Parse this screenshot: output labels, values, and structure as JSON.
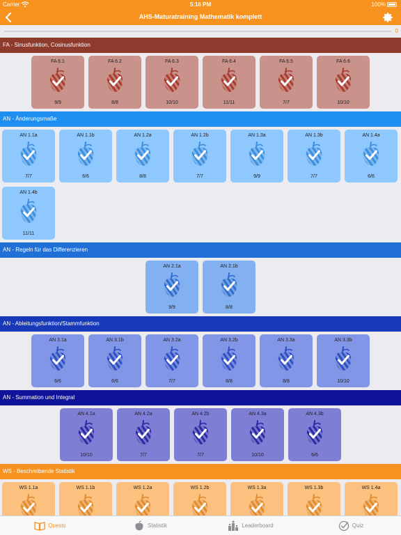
{
  "status_bar": {
    "carrier": "Carrier",
    "time": "5:16 PM",
    "battery": "100%"
  },
  "nav": {
    "title": "AHS-Maturatraining Mathematik komplett",
    "back_icon": "chevron-left-icon",
    "settings_icon": "gear-icon"
  },
  "progress": {
    "count": "0",
    "fraction": 0
  },
  "sections": [
    {
      "title": "FA - Sinusfunktion, Cosinusfunktion",
      "header_color": "#8e3a2d",
      "tile_color": "#c9928b",
      "acorn_color": "#a63d30",
      "align": "center",
      "tiles": [
        {
          "code": "FA 6.1",
          "score": "9/9"
        },
        {
          "code": "FA 6.2",
          "score": "8/8"
        },
        {
          "code": "FA 6.3",
          "score": "10/10"
        },
        {
          "code": "FA 6.4",
          "score": "11/11"
        },
        {
          "code": "FA 6.5",
          "score": "7/7"
        },
        {
          "code": "FA 6.6",
          "score": "10/10"
        }
      ]
    },
    {
      "title": "AN - Änderungsmaße",
      "header_color": "#1e8ef0",
      "tile_color": "#8ec8ff",
      "acorn_color": "#3a8fe0",
      "align": "left",
      "tiles": [
        {
          "code": "AN 1.1a",
          "score": "7/7"
        },
        {
          "code": "AN 1.1b",
          "score": "6/6"
        },
        {
          "code": "AN 1.2a",
          "score": "8/8"
        },
        {
          "code": "AN 1.2b",
          "score": "7/7"
        },
        {
          "code": "AN 1.3a",
          "score": "9/9"
        },
        {
          "code": "AN 1.3b",
          "score": "7/7"
        },
        {
          "code": "AN 1.4a",
          "score": "6/6"
        },
        {
          "code": "AN 1.4b",
          "score": "11/11"
        }
      ]
    },
    {
      "title": "AN - Regeln für das Differenzieren",
      "header_color": "#1f6fd6",
      "tile_color": "#82b0f0",
      "acorn_color": "#2d6fd1",
      "align": "center",
      "tiles": [
        {
          "code": "AN 2.1a",
          "score": "9/9"
        },
        {
          "code": "AN 2.1b",
          "score": "8/8"
        }
      ]
    },
    {
      "title": "AN - Ableitungsfunktion/Stammfunktion",
      "header_color": "#1738b8",
      "tile_color": "#8196e6",
      "acorn_color": "#2e4ec5",
      "align": "center",
      "tiles": [
        {
          "code": "AN 3.1a",
          "score": "6/6"
        },
        {
          "code": "AN 3.1b",
          "score": "6/6"
        },
        {
          "code": "AN 3.2a",
          "score": "7/7"
        },
        {
          "code": "AN 3.2b",
          "score": "8/8"
        },
        {
          "code": "AN 3.3a",
          "score": "8/8"
        },
        {
          "code": "AN 3.3b",
          "score": "10/10"
        }
      ]
    },
    {
      "title": "AN - Summation und Integral",
      "header_color": "#0f139a",
      "tile_color": "#7e7fd4",
      "acorn_color": "#2a2aa8",
      "align": "center",
      "tiles": [
        {
          "code": "AN 4.1a",
          "score": "10/10"
        },
        {
          "code": "AN 4.2a",
          "score": "7/7"
        },
        {
          "code": "AN 4.2b",
          "score": "7/7"
        },
        {
          "code": "AN 4.3a",
          "score": "10/10"
        },
        {
          "code": "AN 4.3b",
          "score": "6/6"
        }
      ]
    },
    {
      "title": "WS - Beschreibende Statistik",
      "header_color": "#f7921e",
      "tile_color": "#fcc07f",
      "acorn_color": "#e48a2a",
      "align": "left",
      "tiles": [
        {
          "code": "WS 1.1a",
          "score": ""
        },
        {
          "code": "WS 1.1b",
          "score": ""
        },
        {
          "code": "WS 1.2a",
          "score": ""
        },
        {
          "code": "WS 1.2b",
          "score": ""
        },
        {
          "code": "WS 1.3a",
          "score": ""
        },
        {
          "code": "WS 1.3b",
          "score": ""
        },
        {
          "code": "WS 1.4a",
          "score": ""
        }
      ]
    }
  ],
  "tabs": [
    {
      "label": "Quests",
      "icon": "book-icon",
      "active": true
    },
    {
      "label": "Statistik",
      "icon": "apple-icon",
      "active": false
    },
    {
      "label": "Leaderboard",
      "icon": "leaderboard-icon",
      "active": false
    },
    {
      "label": "Quiz",
      "icon": "checkmark-circle-icon",
      "active": false
    }
  ],
  "colors": {
    "accent": "#f7921e",
    "background": "#ecebf0"
  }
}
